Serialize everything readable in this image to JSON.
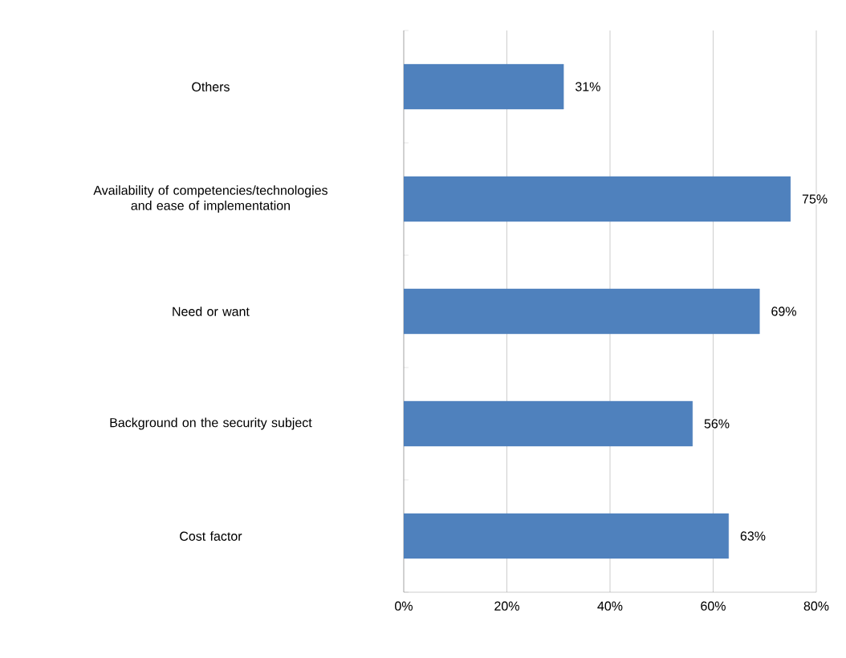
{
  "chart_data": {
    "type": "bar",
    "orientation": "horizontal",
    "categories": [
      "Others",
      "Availability of competencies/technologies and ease of implementation",
      "Need or want",
      "Background on the security subject",
      "Cost factor"
    ],
    "values": [
      31,
      75,
      69,
      56,
      63
    ],
    "value_labels": [
      "31%",
      "75%",
      "69%",
      "56%",
      "63%"
    ],
    "color": "#4f81bd",
    "xlim": [
      0,
      80
    ],
    "xticks": [
      {
        "value": 0,
        "label": "0%"
      },
      {
        "value": 20,
        "label": "20%"
      },
      {
        "value": 40,
        "label": "40%"
      },
      {
        "value": 60,
        "label": "60%"
      },
      {
        "value": 80,
        "label": "80%"
      }
    ],
    "grid": "x"
  }
}
